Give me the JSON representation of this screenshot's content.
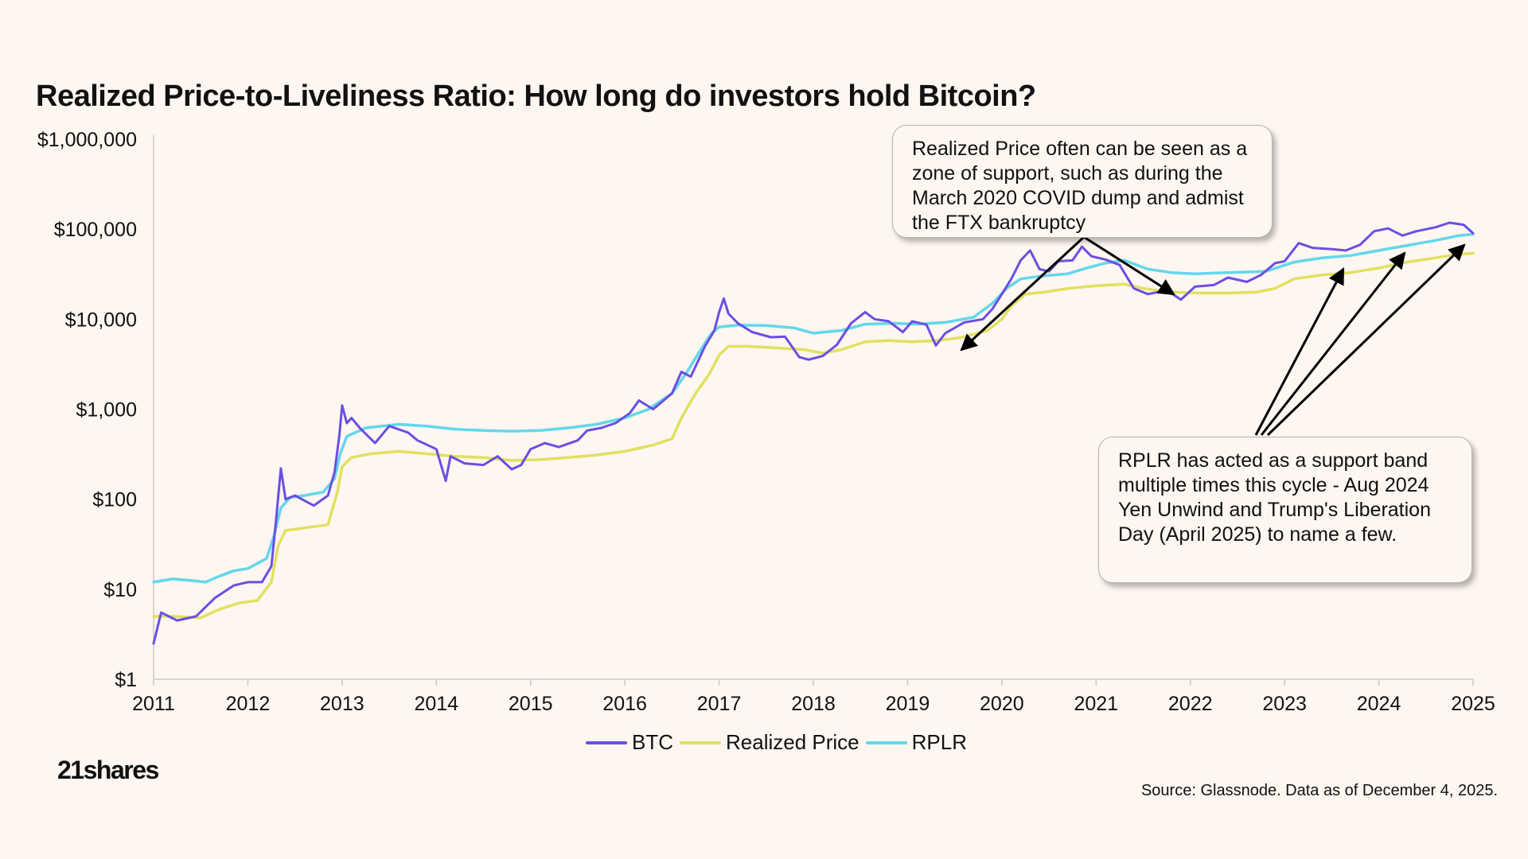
{
  "title": "Realized Price-to-Liveliness Ratio: How long do investors hold Bitcoin?",
  "logo": "21shares",
  "source": "Source: Glassnode. Data as of December 4, 2025.",
  "callouts": [
    "Realized Price often can be seen as a zone of support, such as during the March 2020 COVID dump and admist the FTX bankruptcy",
    "RPLR has acted as a support band multiple times this cycle - Aug 2024 Yen Unwind and Trump's Liberation Day (April 2025) to name a few."
  ],
  "colors": {
    "btc": "#6b4fe0",
    "realized": "#e3e060",
    "rplr": "#63d7ec",
    "background": "#fdf6f1"
  },
  "chart_data": {
    "type": "line",
    "title": "Realized Price-to-Liveliness Ratio: How long do investors hold Bitcoin?",
    "yscale": "log",
    "ylim": [
      1,
      1000000
    ],
    "xlim": [
      2011,
      2025
    ],
    "y_tick_values": [
      1,
      10,
      100,
      1000,
      10000,
      100000,
      1000000
    ],
    "y_tick_labels": [
      "$1",
      "$10",
      "$100",
      "$1,000",
      "$10,000",
      "$100,000",
      "$1,000,000"
    ],
    "x_ticks": [
      "2011",
      "2012",
      "2013",
      "2014",
      "2015",
      "2016",
      "2017",
      "2018",
      "2019",
      "2020",
      "2021",
      "2022",
      "2023",
      "2024",
      "2025"
    ],
    "legend_position": "bottom",
    "series": [
      {
        "name": "BTC",
        "points": [
          [
            2011.0,
            2.5
          ],
          [
            2011.08,
            5.5
          ],
          [
            2011.25,
            4.5
          ],
          [
            2011.45,
            5
          ],
          [
            2011.65,
            8
          ],
          [
            2011.85,
            11
          ],
          [
            2012.0,
            12
          ],
          [
            2012.15,
            12
          ],
          [
            2012.25,
            18
          ],
          [
            2012.3,
            60
          ],
          [
            2012.35,
            220
          ],
          [
            2012.4,
            100
          ],
          [
            2012.5,
            110
          ],
          [
            2012.7,
            85
          ],
          [
            2012.85,
            110
          ],
          [
            2012.92,
            200
          ],
          [
            2012.97,
            500
          ],
          [
            2013.0,
            1100
          ],
          [
            2013.05,
            700
          ],
          [
            2013.1,
            800
          ],
          [
            2013.2,
            600
          ],
          [
            2013.35,
            420
          ],
          [
            2013.5,
            650
          ],
          [
            2013.7,
            550
          ],
          [
            2013.8,
            450
          ],
          [
            2014.0,
            360
          ],
          [
            2014.1,
            160
          ],
          [
            2014.15,
            300
          ],
          [
            2014.3,
            250
          ],
          [
            2014.5,
            240
          ],
          [
            2014.65,
            300
          ],
          [
            2014.8,
            215
          ],
          [
            2014.9,
            240
          ],
          [
            2015.0,
            360
          ],
          [
            2015.15,
            420
          ],
          [
            2015.3,
            380
          ],
          [
            2015.5,
            450
          ],
          [
            2015.6,
            580
          ],
          [
            2015.75,
            620
          ],
          [
            2015.9,
            700
          ],
          [
            2016.05,
            900
          ],
          [
            2016.15,
            1250
          ],
          [
            2016.3,
            1000
          ],
          [
            2016.5,
            1500
          ],
          [
            2016.6,
            2600
          ],
          [
            2016.7,
            2300
          ],
          [
            2016.85,
            5000
          ],
          [
            2016.95,
            7500
          ],
          [
            2017.0,
            12000
          ],
          [
            2017.05,
            17000
          ],
          [
            2017.1,
            11500
          ],
          [
            2017.2,
            9000
          ],
          [
            2017.35,
            7200
          ],
          [
            2017.55,
            6300
          ],
          [
            2017.7,
            6400
          ],
          [
            2017.85,
            3800
          ],
          [
            2017.95,
            3550
          ],
          [
            2018.1,
            3900
          ],
          [
            2018.25,
            5200
          ],
          [
            2018.4,
            9000
          ],
          [
            2018.55,
            12000
          ],
          [
            2018.65,
            10000
          ],
          [
            2018.8,
            9500
          ],
          [
            2018.95,
            7200
          ],
          [
            2019.05,
            9500
          ],
          [
            2019.2,
            8700
          ],
          [
            2019.3,
            5100
          ],
          [
            2019.4,
            7000
          ],
          [
            2019.6,
            9200
          ],
          [
            2019.8,
            10000
          ],
          [
            2019.9,
            13000
          ],
          [
            2020.0,
            19000
          ],
          [
            2020.1,
            28000
          ],
          [
            2020.2,
            45000
          ],
          [
            2020.3,
            58000
          ],
          [
            2020.4,
            36000
          ],
          [
            2020.5,
            34000
          ],
          [
            2020.6,
            44000
          ],
          [
            2020.75,
            45000
          ],
          [
            2020.85,
            64000
          ],
          [
            2020.95,
            50000
          ],
          [
            2021.1,
            46000
          ],
          [
            2021.25,
            40000
          ],
          [
            2021.4,
            22000
          ],
          [
            2021.55,
            19000
          ],
          [
            2021.75,
            21000
          ],
          [
            2021.9,
            16500
          ],
          [
            2022.05,
            23000
          ],
          [
            2022.25,
            24000
          ],
          [
            2022.4,
            29000
          ],
          [
            2022.6,
            26000
          ],
          [
            2022.75,
            31000
          ],
          [
            2022.9,
            42000
          ],
          [
            2023.0,
            44000
          ],
          [
            2023.15,
            70000
          ],
          [
            2023.3,
            62000
          ],
          [
            2023.5,
            60000
          ],
          [
            2023.65,
            58000
          ],
          [
            2023.8,
            67000
          ],
          [
            2023.95,
            95000
          ],
          [
            2024.1,
            102000
          ],
          [
            2024.25,
            85000
          ],
          [
            2024.4,
            95000
          ],
          [
            2024.6,
            105000
          ],
          [
            2024.75,
            118000
          ],
          [
            2024.9,
            112000
          ],
          [
            2025.0,
            90000
          ]
        ]
      },
      {
        "name": "Realized Price",
        "points": [
          [
            2011.0,
            5
          ],
          [
            2011.2,
            5
          ],
          [
            2011.5,
            4.8
          ],
          [
            2011.7,
            6
          ],
          [
            2011.9,
            7
          ],
          [
            2012.1,
            7.5
          ],
          [
            2012.25,
            12
          ],
          [
            2012.32,
            30
          ],
          [
            2012.4,
            45
          ],
          [
            2012.6,
            48
          ],
          [
            2012.85,
            52
          ],
          [
            2012.95,
            120
          ],
          [
            2013.0,
            230
          ],
          [
            2013.1,
            290
          ],
          [
            2013.3,
            320
          ],
          [
            2013.6,
            340
          ],
          [
            2013.9,
            320
          ],
          [
            2014.2,
            300
          ],
          [
            2014.5,
            290
          ],
          [
            2014.8,
            270
          ],
          [
            2015.1,
            275
          ],
          [
            2015.4,
            290
          ],
          [
            2015.7,
            310
          ],
          [
            2016.0,
            340
          ],
          [
            2016.3,
            400
          ],
          [
            2016.5,
            470
          ],
          [
            2016.6,
            800
          ],
          [
            2016.75,
            1500
          ],
          [
            2016.9,
            2500
          ],
          [
            2017.0,
            4000
          ],
          [
            2017.1,
            5000
          ],
          [
            2017.3,
            5000
          ],
          [
            2017.6,
            4800
          ],
          [
            2017.9,
            4600
          ],
          [
            2018.1,
            4200
          ],
          [
            2018.3,
            4600
          ],
          [
            2018.55,
            5600
          ],
          [
            2018.8,
            5800
          ],
          [
            2019.05,
            5600
          ],
          [
            2019.3,
            5800
          ],
          [
            2019.55,
            6200
          ],
          [
            2019.85,
            7500
          ],
          [
            2020.0,
            10000
          ],
          [
            2020.1,
            14000
          ],
          [
            2020.25,
            19000
          ],
          [
            2020.45,
            20000
          ],
          [
            2020.7,
            22000
          ],
          [
            2021.0,
            23500
          ],
          [
            2021.3,
            24500
          ],
          [
            2021.5,
            22000
          ],
          [
            2021.8,
            20000
          ],
          [
            2022.1,
            19500
          ],
          [
            2022.4,
            19500
          ],
          [
            2022.7,
            20000
          ],
          [
            2022.9,
            22000
          ],
          [
            2023.1,
            28000
          ],
          [
            2023.4,
            31000
          ],
          [
            2023.7,
            33000
          ],
          [
            2024.0,
            37000
          ],
          [
            2024.3,
            43000
          ],
          [
            2024.6,
            48000
          ],
          [
            2024.8,
            52000
          ],
          [
            2025.0,
            54000
          ]
        ]
      },
      {
        "name": "RPLR",
        "points": [
          [
            2011.0,
            12
          ],
          [
            2011.2,
            13
          ],
          [
            2011.4,
            12.5
          ],
          [
            2011.55,
            12
          ],
          [
            2011.7,
            14
          ],
          [
            2011.85,
            16
          ],
          [
            2012.0,
            17
          ],
          [
            2012.2,
            22
          ],
          [
            2012.28,
            40
          ],
          [
            2012.35,
            80
          ],
          [
            2012.45,
            105
          ],
          [
            2012.6,
            110
          ],
          [
            2012.8,
            120
          ],
          [
            2012.92,
            170
          ],
          [
            2012.98,
            320
          ],
          [
            2013.05,
            500
          ],
          [
            2013.25,
            620
          ],
          [
            2013.6,
            680
          ],
          [
            2013.9,
            650
          ],
          [
            2014.2,
            600
          ],
          [
            2014.5,
            580
          ],
          [
            2014.8,
            570
          ],
          [
            2015.1,
            580
          ],
          [
            2015.4,
            620
          ],
          [
            2015.7,
            680
          ],
          [
            2016.0,
            800
          ],
          [
            2016.25,
            1000
          ],
          [
            2016.5,
            1500
          ],
          [
            2016.65,
            2500
          ],
          [
            2016.8,
            4500
          ],
          [
            2016.92,
            7000
          ],
          [
            2017.0,
            8200
          ],
          [
            2017.2,
            8600
          ],
          [
            2017.5,
            8500
          ],
          [
            2017.8,
            8000
          ],
          [
            2018.0,
            7000
          ],
          [
            2018.3,
            7500
          ],
          [
            2018.55,
            8800
          ],
          [
            2018.85,
            9000
          ],
          [
            2019.1,
            8800
          ],
          [
            2019.4,
            9200
          ],
          [
            2019.7,
            10500
          ],
          [
            2019.9,
            15000
          ],
          [
            2020.05,
            22000
          ],
          [
            2020.2,
            28000
          ],
          [
            2020.4,
            30000
          ],
          [
            2020.7,
            32000
          ],
          [
            2020.9,
            37000
          ],
          [
            2021.1,
            42000
          ],
          [
            2021.3,
            45000
          ],
          [
            2021.55,
            36000
          ],
          [
            2021.8,
            33000
          ],
          [
            2022.05,
            32000
          ],
          [
            2022.4,
            33000
          ],
          [
            2022.8,
            34000
          ],
          [
            2023.1,
            43000
          ],
          [
            2023.4,
            48000
          ],
          [
            2023.7,
            51000
          ],
          [
            2024.0,
            58000
          ],
          [
            2024.3,
            66000
          ],
          [
            2024.6,
            75000
          ],
          [
            2024.85,
            85000
          ],
          [
            2025.0,
            88000
          ]
        ]
      }
    ]
  }
}
